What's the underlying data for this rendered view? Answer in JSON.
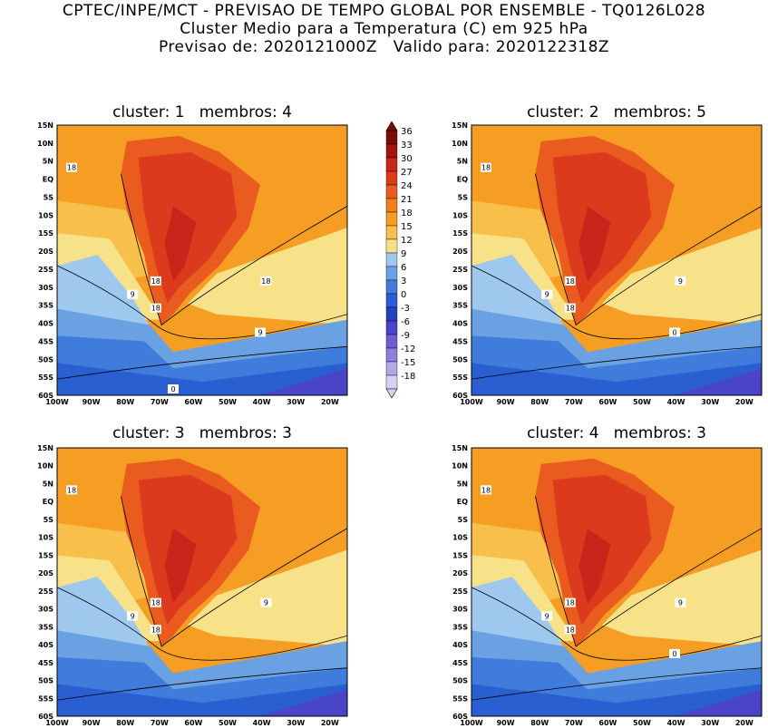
{
  "header": {
    "line1": "CPTEC/INPE/MCT - PREVISAO DE TEMPO GLOBAL POR ENSEMBLE - TQ0126L028",
    "line2": "Cluster Medio para a Temperatura (C) em 925 hPa",
    "line3": "Previsao de: 2020121000Z   Valido para: 2020122318Z"
  },
  "axes": {
    "lat_labels": [
      "15N",
      "10N",
      "5N",
      "EQ",
      "5S",
      "10S",
      "15S",
      "20S",
      "25S",
      "30S",
      "35S",
      "40S",
      "45S",
      "50S",
      "55S",
      "60S"
    ],
    "lon_labels": [
      "100W",
      "90W",
      "80W",
      "70W",
      "60W",
      "50W",
      "40W",
      "30W",
      "20W"
    ]
  },
  "colorbar": {
    "levels": [
      "36",
      "33",
      "30",
      "27",
      "24",
      "21",
      "18",
      "15",
      "12",
      "9",
      "6",
      "3",
      "0",
      "-3",
      "-6",
      "-9",
      "-12",
      "-15",
      "-18"
    ],
    "colors": [
      "#7a0b0b",
      "#a3150f",
      "#c8261a",
      "#dc3a1c",
      "#ea5b1f",
      "#f27f1e",
      "#f69d24",
      "#f8c04a",
      "#f7e28a",
      "#9ec8ee",
      "#6aa1e3",
      "#3f7cdb",
      "#2a5fd1",
      "#2244b8",
      "#4a44c6",
      "#6a5ed0",
      "#8c80dc",
      "#b2a8e6",
      "#d6d0f2"
    ]
  },
  "panels": [
    {
      "title": "cluster: 1   membros: 4",
      "contour_labels": [
        "18",
        "18",
        "18",
        "9",
        "18",
        "9",
        "0"
      ]
    },
    {
      "title": "cluster: 2   membros: 5",
      "contour_labels": [
        "18",
        "18",
        "18",
        "9",
        "9",
        "0"
      ]
    },
    {
      "title": "cluster: 3   membros: 3",
      "contour_labels": [
        "18",
        "18",
        "18",
        "9",
        "9"
      ]
    },
    {
      "title": "cluster: 4   membros: 3",
      "contour_labels": [
        "18",
        "18",
        "18",
        "9",
        "9",
        "0"
      ]
    }
  ]
}
